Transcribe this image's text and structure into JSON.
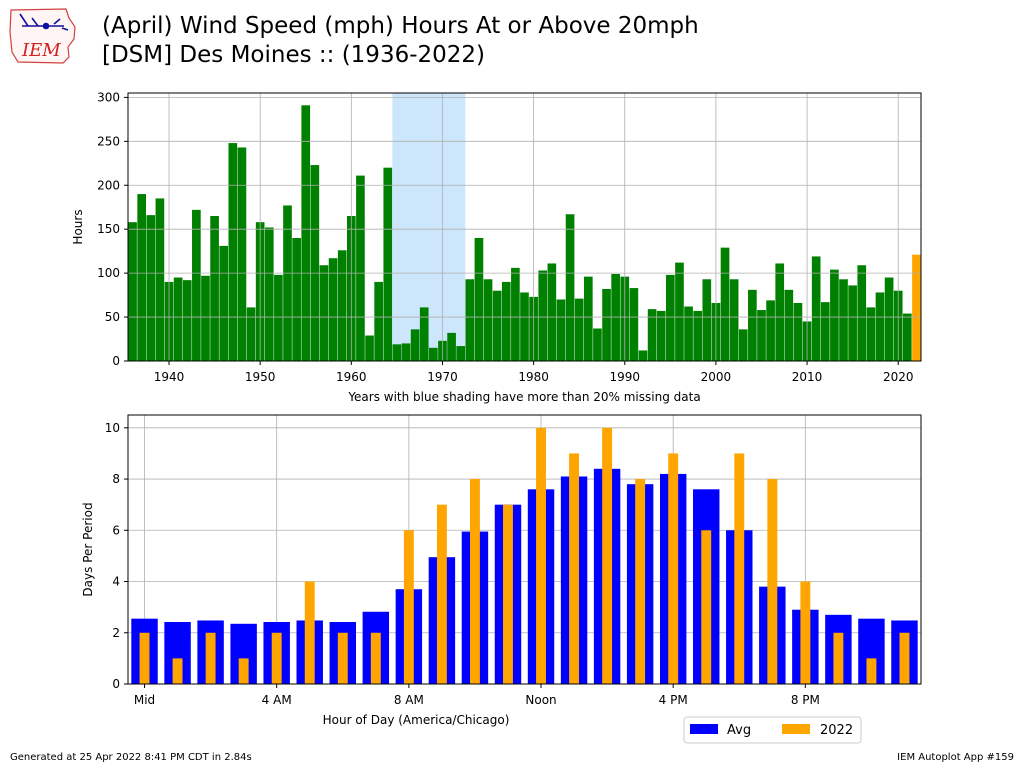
{
  "header": {
    "logo_text": "IEM",
    "title_line1": "(April) Wind Speed (mph) Hours At or Above 20mph",
    "title_line2": "[DSM] Des Moines :: (1936-2022)"
  },
  "footer": {
    "left": "Generated at 25 Apr 2022 8:41 PM CDT in 2.84s",
    "right": "IEM Autoplot App #159"
  },
  "colors": {
    "bar": "#008000",
    "highlight": "#FFA500",
    "avg": "#0000FF",
    "shade": "#cce6fb",
    "grid": "#b0b0b0"
  },
  "chart_data": [
    {
      "type": "bar",
      "ylabel": "Hours",
      "xlabel": "Years with blue shading have more than 20% missing data",
      "xlim": [
        1935.5,
        2022.5
      ],
      "ylim": [
        0,
        305
      ],
      "xticks": [
        1940,
        1950,
        1960,
        1970,
        1980,
        1990,
        2000,
        2010,
        2020
      ],
      "yticks": [
        0,
        50,
        100,
        150,
        200,
        250,
        300
      ],
      "grid": true,
      "shaded_range": [
        1964.5,
        1972.5
      ],
      "highlight_year": 2022,
      "x": [
        1936,
        1937,
        1938,
        1939,
        1940,
        1941,
        1942,
        1943,
        1944,
        1945,
        1946,
        1947,
        1948,
        1949,
        1950,
        1951,
        1952,
        1953,
        1954,
        1955,
        1956,
        1957,
        1958,
        1959,
        1960,
        1961,
        1962,
        1963,
        1964,
        1965,
        1966,
        1967,
        1968,
        1969,
        1970,
        1971,
        1972,
        1973,
        1974,
        1975,
        1976,
        1977,
        1978,
        1979,
        1980,
        1981,
        1982,
        1983,
        1984,
        1985,
        1986,
        1987,
        1988,
        1989,
        1990,
        1991,
        1992,
        1993,
        1994,
        1995,
        1996,
        1997,
        1998,
        1999,
        2000,
        2001,
        2002,
        2003,
        2004,
        2005,
        2006,
        2007,
        2008,
        2009,
        2010,
        2011,
        2012,
        2013,
        2014,
        2015,
        2016,
        2017,
        2018,
        2019,
        2020,
        2021,
        2022
      ],
      "values": [
        158,
        190,
        166,
        185,
        90,
        95,
        92,
        172,
        97,
        165,
        131,
        248,
        243,
        61,
        158,
        152,
        98,
        177,
        140,
        291,
        223,
        109,
        117,
        126,
        165,
        211,
        29,
        90,
        220,
        19,
        20,
        36,
        61,
        15,
        23,
        32,
        17,
        93,
        140,
        93,
        80,
        90,
        106,
        78,
        73,
        103,
        111,
        70,
        167,
        71,
        96,
        37,
        82,
        99,
        96,
        83,
        12,
        59,
        57,
        98,
        112,
        62,
        57,
        93,
        66,
        129,
        93,
        36,
        81,
        58,
        69,
        111,
        81,
        66,
        45,
        119,
        67,
        104,
        93,
        86,
        109,
        61,
        78,
        95,
        80,
        54,
        121
      ]
    },
    {
      "type": "bar",
      "ylabel": "Days Per Period",
      "xlabel": "Hour of Day (America/Chicago)",
      "xlim": [
        -0.5,
        23.5
      ],
      "ylim": [
        0,
        10.5
      ],
      "yticks": [
        0,
        2,
        4,
        6,
        8,
        10
      ],
      "grid": true,
      "legend_position": "lower-right-outside",
      "xticks": [
        0,
        4,
        8,
        12,
        16,
        20
      ],
      "xtick_labels": [
        "Mid",
        "4 AM",
        "8 AM",
        "Noon",
        "4 PM",
        "8 PM"
      ],
      "categories": [
        0,
        1,
        2,
        3,
        4,
        5,
        6,
        7,
        8,
        9,
        10,
        11,
        12,
        13,
        14,
        15,
        16,
        17,
        18,
        19,
        20,
        21,
        22,
        23
      ],
      "series": [
        {
          "name": "Avg",
          "values": [
            2.55,
            2.42,
            2.48,
            2.35,
            2.42,
            2.48,
            2.42,
            2.82,
            3.7,
            4.95,
            5.95,
            7.0,
            7.6,
            8.1,
            8.4,
            7.8,
            8.2,
            7.6,
            6.0,
            3.8,
            2.9,
            2.7,
            2.55,
            2.48
          ]
        },
        {
          "name": "2022",
          "values": [
            2,
            1,
            2,
            1,
            2,
            4,
            2,
            2,
            6,
            7,
            8,
            7,
            10,
            9,
            10,
            8,
            9,
            6,
            9,
            8,
            4,
            2,
            1,
            2
          ]
        }
      ]
    }
  ]
}
